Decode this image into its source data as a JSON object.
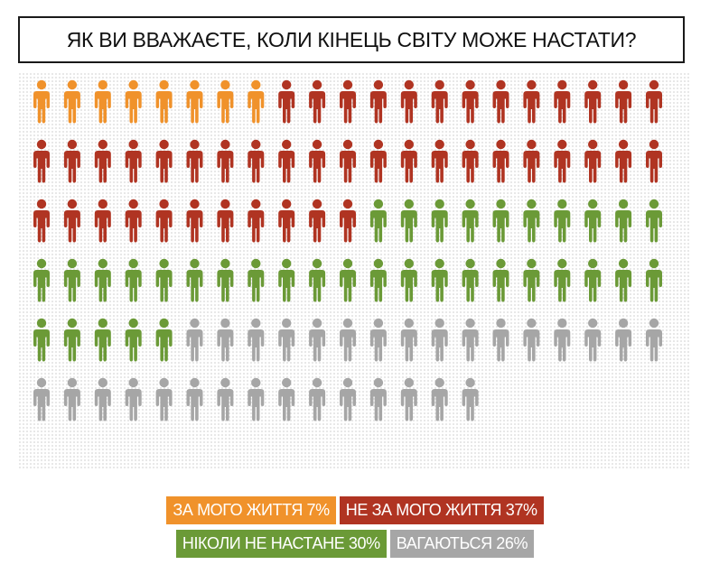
{
  "title": "ЯК ВИ ВВАЖАЄТЕ, КОЛИ КІНЕЦЬ СВІТУ МОЖЕ НАСТАТИ?",
  "chart_data": {
    "type": "pictogram",
    "title": "ЯК ВИ ВВАЖАЄТЕ, КОЛИ КІНЕЦЬ СВІТУ МОЖЕ НАСТАТИ?",
    "total_icons": 120,
    "series": [
      {
        "name": "ЗА МОГО ЖИТТЯ 7%",
        "percent": 7,
        "icons": 8,
        "color": "#f0922b"
      },
      {
        "name": "НЕ ЗА МОГО ЖИТТЯ 37%",
        "percent": 37,
        "icons": 45,
        "color": "#b03422"
      },
      {
        "name": "НІКОЛИ НЕ НАСТАНЕ 30%",
        "percent": 30,
        "icons": 36,
        "color": "#6b9a37"
      },
      {
        "name": "ВАГАЮТЬСЯ 26%",
        "percent": 26,
        "icons": 31,
        "color": "#a6a6a6"
      }
    ]
  },
  "legend": {
    "row1": [
      {
        "label": "ЗА МОГО ЖИТТЯ 7%",
        "color": "#f0922b"
      },
      {
        "label": "НЕ ЗА МОГО ЖИТТЯ 37%",
        "color": "#b03422"
      }
    ],
    "row2": [
      {
        "label": "НІКОЛИ НЕ НАСТАНЕ 30%",
        "color": "#6b9a37"
      },
      {
        "label": "ВАГАЮТЬСЯ 26%",
        "color": "#a6a6a6"
      }
    ]
  }
}
